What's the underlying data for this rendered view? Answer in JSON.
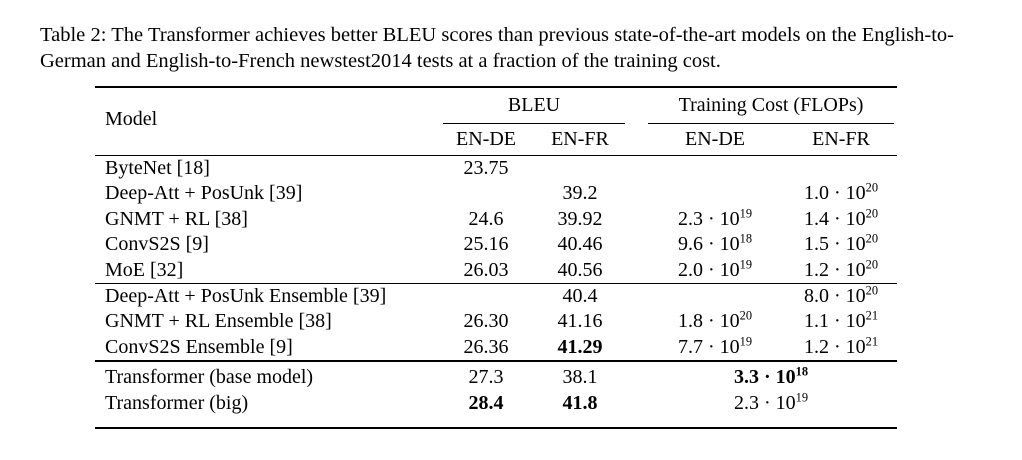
{
  "caption": "Table 2: The Transformer achieves better BLEU scores than previous state-of-the-art models on the English-to-German and English-to-French newstest2014 tests at a fraction of the training cost.",
  "table": {
    "header": {
      "model": "Model",
      "bleu_group": "BLEU",
      "cost_group": "Training Cost (FLOPs)",
      "bleu_en_de": "EN-DE",
      "bleu_en_fr": "EN-FR",
      "cost_en_de": "EN-DE",
      "cost_en_fr": "EN-FR"
    },
    "groups": [
      {
        "rows": [
          {
            "model": "ByteNet [18]",
            "bleu_en_de": {
              "v": "23.75"
            },
            "bleu_en_fr": null,
            "cost_en_de": null,
            "cost_en_fr": null
          },
          {
            "model": "Deep-Att + PosUnk [39]",
            "bleu_en_de": null,
            "bleu_en_fr": {
              "v": "39.2"
            },
            "cost_en_de": null,
            "cost_en_fr": {
              "m": "1.0",
              "e": "20"
            }
          },
          {
            "model": "GNMT + RL [38]",
            "bleu_en_de": {
              "v": "24.6"
            },
            "bleu_en_fr": {
              "v": "39.92"
            },
            "cost_en_de": {
              "m": "2.3",
              "e": "19"
            },
            "cost_en_fr": {
              "m": "1.4",
              "e": "20"
            }
          },
          {
            "model": "ConvS2S [9]",
            "bleu_en_de": {
              "v": "25.16"
            },
            "bleu_en_fr": {
              "v": "40.46"
            },
            "cost_en_de": {
              "m": "9.6",
              "e": "18"
            },
            "cost_en_fr": {
              "m": "1.5",
              "e": "20"
            }
          },
          {
            "model": "MoE [32]",
            "bleu_en_de": {
              "v": "26.03"
            },
            "bleu_en_fr": {
              "v": "40.56"
            },
            "cost_en_de": {
              "m": "2.0",
              "e": "19"
            },
            "cost_en_fr": {
              "m": "1.2",
              "e": "20"
            }
          }
        ]
      },
      {
        "rows": [
          {
            "model": "Deep-Att + PosUnk Ensemble [39]",
            "bleu_en_de": null,
            "bleu_en_fr": {
              "v": "40.4"
            },
            "cost_en_de": null,
            "cost_en_fr": {
              "m": "8.0",
              "e": "20"
            }
          },
          {
            "model": "GNMT + RL Ensemble [38]",
            "bleu_en_de": {
              "v": "26.30"
            },
            "bleu_en_fr": {
              "v": "41.16"
            },
            "cost_en_de": {
              "m": "1.8",
              "e": "20"
            },
            "cost_en_fr": {
              "m": "1.1",
              "e": "21"
            }
          },
          {
            "model": "ConvS2S Ensemble [9]",
            "bleu_en_de": {
              "v": "26.36"
            },
            "bleu_en_fr": {
              "v": "41.29",
              "bold": true
            },
            "cost_en_de": {
              "m": "7.7",
              "e": "19"
            },
            "cost_en_fr": {
              "m": "1.2",
              "e": "21"
            }
          }
        ]
      },
      {
        "rows": [
          {
            "model": "Transformer (base model)",
            "bleu_en_de": {
              "v": "27.3"
            },
            "bleu_en_fr": {
              "v": "38.1"
            },
            "cost_span": {
              "m": "3.3",
              "e": "18",
              "bold": true
            }
          },
          {
            "model": "Transformer (big)",
            "bleu_en_de": {
              "v": "28.4",
              "bold": true
            },
            "bleu_en_fr": {
              "v": "41.8",
              "bold": true
            },
            "cost_span": {
              "m": "2.3",
              "e": "19"
            }
          }
        ]
      }
    ]
  },
  "colors": {
    "text": "#000000",
    "background": "#ffffff",
    "rule": "#000000"
  }
}
